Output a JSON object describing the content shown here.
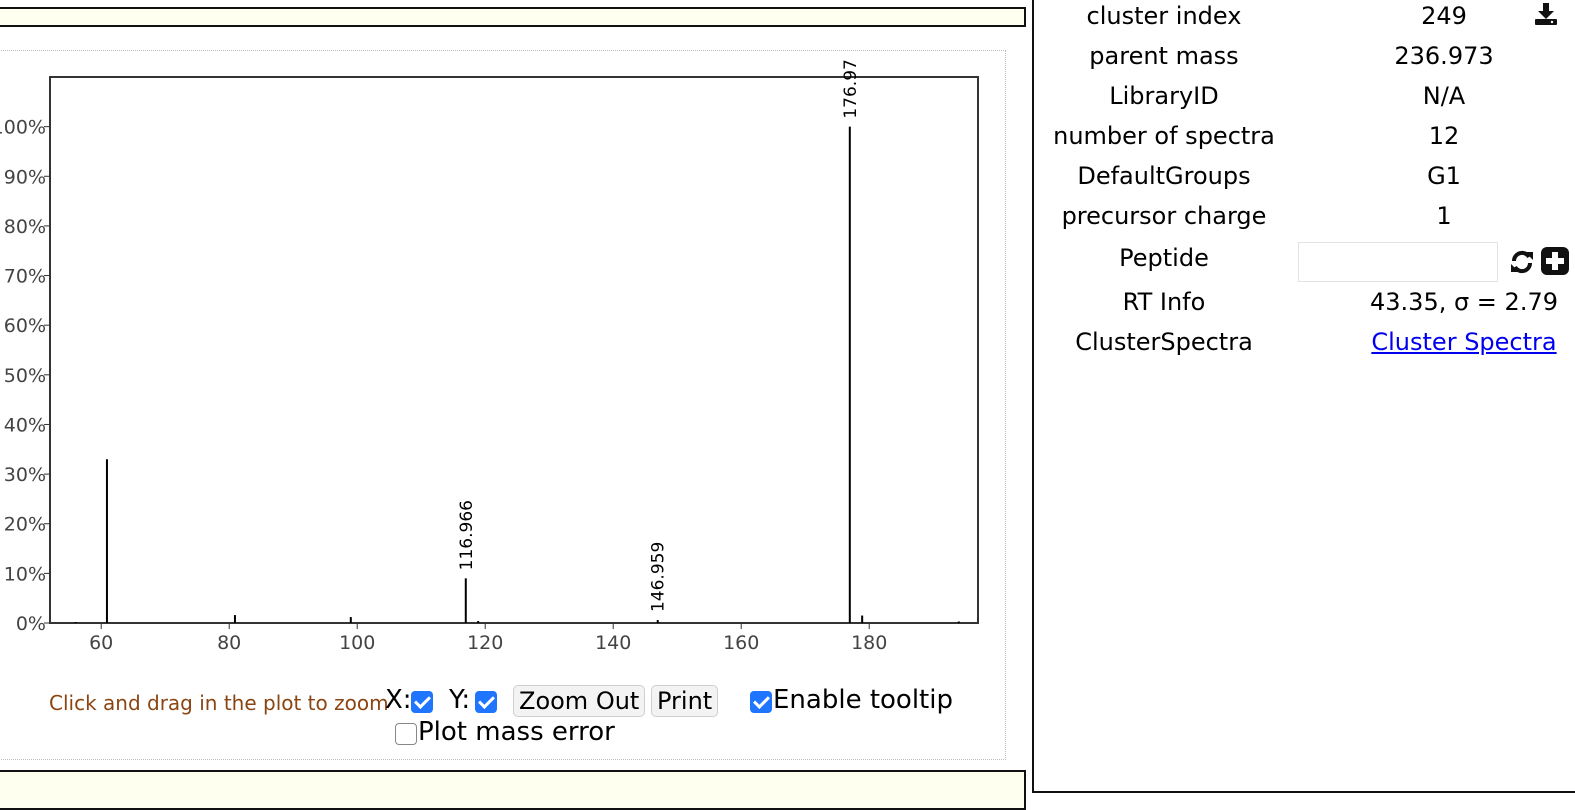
{
  "controls": {
    "hint": "Click and drag in the plot to zoom",
    "x_label": "X:",
    "y_label": "Y:",
    "x_checked": true,
    "y_checked": true,
    "zoom_out": "Zoom Out",
    "print": "Print",
    "tooltip_label": "Enable tooltip",
    "tooltip_checked": true,
    "mass_error_label": "Plot mass error",
    "mass_error_checked": false
  },
  "info": {
    "rows": [
      {
        "key": "cluster index",
        "value": "249"
      },
      {
        "key": "parent mass",
        "value": "236.973"
      },
      {
        "key": "LibraryID",
        "value": "N/A"
      },
      {
        "key": "number of spectra",
        "value": "12"
      },
      {
        "key": "DefaultGroups",
        "value": "G1"
      },
      {
        "key": "precursor charge",
        "value": "1"
      },
      {
        "key": "Peptide",
        "value": ""
      },
      {
        "key": "RT Info",
        "value": "43.35, σ = 2.79"
      },
      {
        "key": "ClusterSpectra",
        "value": "Cluster Spectra"
      }
    ],
    "peptide_placeholder": "",
    "icons": [
      "download-icon",
      "refresh-icon",
      "add-icon"
    ]
  },
  "chart_data": {
    "type": "bar",
    "title": "",
    "xlabel": "",
    "ylabel": "",
    "xlim": [
      52,
      197
    ],
    "ylim": [
      0,
      110
    ],
    "x_ticks": [
      60,
      80,
      100,
      120,
      140,
      160,
      180
    ],
    "y_ticks": [
      0,
      10,
      20,
      30,
      40,
      50,
      60,
      70,
      80,
      90,
      100
    ],
    "y_tick_suffix": "%",
    "peaks": [
      {
        "mz": 56.0,
        "intensity": 0.2,
        "label": ""
      },
      {
        "mz": 60.9,
        "intensity": 33,
        "label": ""
      },
      {
        "mz": 80.9,
        "intensity": 1.6,
        "label": ""
      },
      {
        "mz": 99.0,
        "intensity": 1.2,
        "label": ""
      },
      {
        "mz": 116.966,
        "intensity": 9,
        "label": "116.966"
      },
      {
        "mz": 118.9,
        "intensity": 0.4,
        "label": ""
      },
      {
        "mz": 146.959,
        "intensity": 0.6,
        "label": "146.959"
      },
      {
        "mz": 176.97,
        "intensity": 100,
        "label": "176.97"
      },
      {
        "mz": 178.9,
        "intensity": 1.5,
        "label": ""
      },
      {
        "mz": 194.0,
        "intensity": 0.3,
        "label": ""
      }
    ],
    "grid": false
  }
}
